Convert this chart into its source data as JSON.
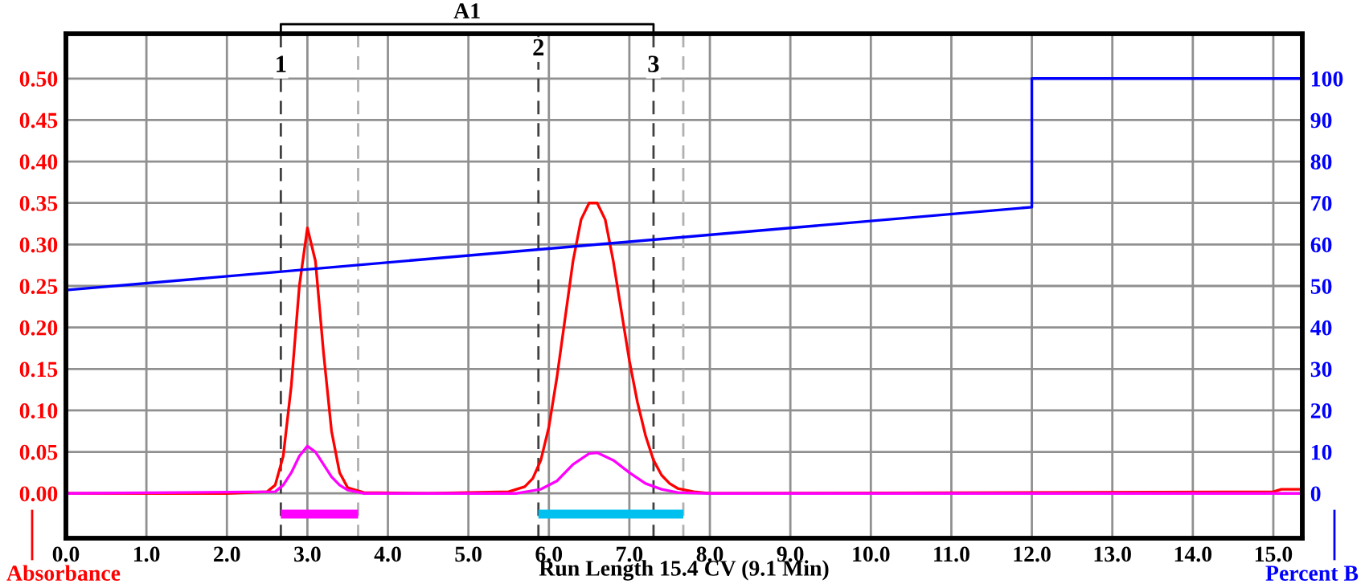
{
  "chart_data": {
    "type": "line",
    "xlabel": "Run Length 15.4 CV (9.1 Min)",
    "ylabel": "Absorbance",
    "y2label": "Percent B",
    "annotations": [
      "A1",
      {
        "text": "1",
        "x": 2.67,
        "y": 0.515
      },
      {
        "text": "2",
        "x": 5.87,
        "y": 0.535
      },
      {
        "text": "3",
        "x": 7.3,
        "y": 0.515
      }
    ],
    "legend": false,
    "xlim": [
      0,
      15.36
    ],
    "ylim": [
      -0.054,
      0.554
    ],
    "y2lim": [
      -10.8,
      110.8
    ],
    "xticks": [
      {
        "value": 0,
        "label": "0.0"
      },
      {
        "value": 1,
        "label": "1.0"
      },
      {
        "value": 2,
        "label": "2.0"
      },
      {
        "value": 3,
        "label": "3.0"
      },
      {
        "value": 4,
        "label": "4.0"
      },
      {
        "value": 5,
        "label": "5.0"
      },
      {
        "value": 6,
        "label": "6.0"
      },
      {
        "value": 7,
        "label": "7.0"
      },
      {
        "value": 8,
        "label": "8.0"
      },
      {
        "value": 9,
        "label": "9.0"
      },
      {
        "value": 10,
        "label": "10.0"
      },
      {
        "value": 11,
        "label": "11.0"
      },
      {
        "value": 12,
        "label": "12.0"
      },
      {
        "value": 13,
        "label": "13.0"
      },
      {
        "value": 14,
        "label": "14.0"
      },
      {
        "value": 15,
        "label": "15.0"
      }
    ],
    "yticks": [
      {
        "value": 0,
        "label": "0.00"
      },
      {
        "value": 0.05,
        "label": "0.05"
      },
      {
        "value": 0.1,
        "label": "0.10"
      },
      {
        "value": 0.15,
        "label": "0.15"
      },
      {
        "value": 0.2,
        "label": "0.20"
      },
      {
        "value": 0.25,
        "label": "0.25"
      },
      {
        "value": 0.3,
        "label": "0.30"
      },
      {
        "value": 0.35,
        "label": "0.35"
      },
      {
        "value": 0.4,
        "label": "0.40"
      },
      {
        "value": 0.45,
        "label": "0.45"
      },
      {
        "value": 0.5,
        "label": "0.50"
      }
    ],
    "y2ticks": [
      0,
      10,
      20,
      30,
      40,
      50,
      60,
      70,
      80,
      90,
      100
    ],
    "grid": true,
    "marker": "none",
    "series": [
      {
        "color": "#ff0000",
        "x": [
          0,
          2.0,
          2.5,
          2.6,
          2.7,
          2.8,
          2.9,
          3.0,
          3.1,
          3.2,
          3.3,
          3.4,
          3.5,
          3.7,
          4.5,
          5.5,
          5.7,
          5.8,
          5.9,
          6.0,
          6.1,
          6.2,
          6.3,
          6.4,
          6.5,
          6.6,
          6.7,
          6.8,
          6.9,
          7.0,
          7.1,
          7.2,
          7.3,
          7.4,
          7.5,
          7.6,
          7.8,
          8.0,
          15.0,
          15.1,
          15.36
        ],
        "values": [
          0,
          0,
          0.002,
          0.01,
          0.045,
          0.13,
          0.25,
          0.32,
          0.28,
          0.17,
          0.075,
          0.025,
          0.007,
          0.001,
          0,
          0.002,
          0.008,
          0.018,
          0.04,
          0.08,
          0.14,
          0.21,
          0.28,
          0.33,
          0.35,
          0.35,
          0.33,
          0.28,
          0.22,
          0.16,
          0.11,
          0.07,
          0.04,
          0.022,
          0.012,
          0.006,
          0.002,
          0,
          0.002,
          0.005,
          0.005
        ]
      },
      {
        "color": "#ff00ff",
        "x": [
          0,
          2.6,
          2.7,
          2.8,
          2.9,
          3.0,
          3.1,
          3.2,
          3.3,
          3.4,
          3.5,
          3.7,
          5.6,
          5.9,
          6.1,
          6.3,
          6.5,
          6.6,
          6.8,
          7.0,
          7.2,
          7.4,
          7.6,
          8.0,
          15.36
        ],
        "values": [
          0,
          0.002,
          0.01,
          0.025,
          0.045,
          0.057,
          0.05,
          0.035,
          0.02,
          0.01,
          0.004,
          0,
          0,
          0.005,
          0.015,
          0.035,
          0.048,
          0.049,
          0.04,
          0.025,
          0.012,
          0.005,
          0.001,
          0,
          0
        ]
      },
      {
        "color": "#0000ff",
        "axis": "y2",
        "x": [
          0,
          12,
          12,
          15.36
        ],
        "values": [
          49,
          69,
          100,
          100
        ]
      },
      {
        "color": "#ff00ff",
        "x": [
          2.67,
          3.63
        ],
        "values": [
          -0.025,
          -0.025
        ]
      },
      {
        "color": "#00c0f0",
        "x": [
          5.87,
          7.67
        ],
        "values": [
          -0.025,
          -0.025
        ]
      }
    ],
    "ref_lines": [
      {
        "axis": "x",
        "value": 2.67,
        "label": null,
        "color": "#404040",
        "line_style": "dashed"
      },
      {
        "axis": "x",
        "value": 3.63,
        "label": null,
        "color": "#b0b0b0",
        "line_style": "dashed"
      },
      {
        "axis": "x",
        "value": 5.87,
        "label": null,
        "color": "#404040",
        "line_style": "dashed"
      },
      {
        "axis": "x",
        "value": 7.3,
        "label": null,
        "color": "#404040",
        "line_style": "dashed"
      },
      {
        "axis": "x",
        "value": 7.67,
        "label": null,
        "color": "#b0b0b0",
        "line_style": "dashed"
      }
    ]
  }
}
